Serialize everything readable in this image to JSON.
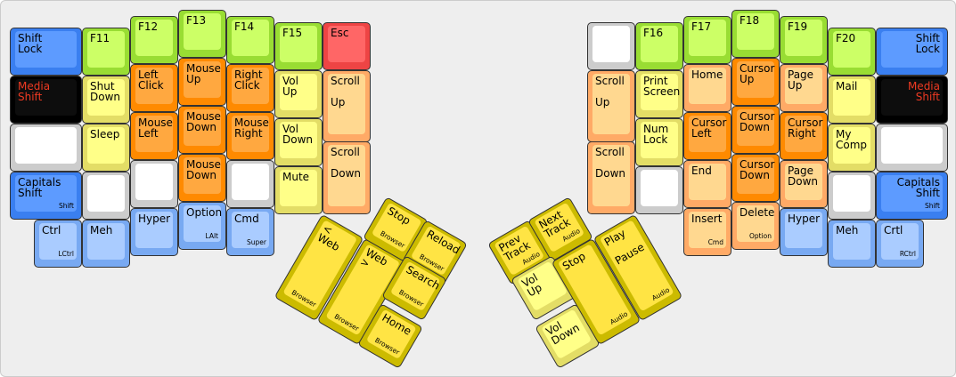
{
  "colors": {
    "blue": "#5d9bff",
    "green": "#ccff66",
    "light_yellow": "#ffff88",
    "orange": "#ffa840",
    "light_orange": "#ffd890",
    "light_blue": "#aaccff",
    "gray": "#ffffff",
    "black": "#0d0d0d",
    "red": "#ff6666",
    "thumb_yellow": "#ffe444",
    "media_text": "#ee3a22"
  },
  "keys": [
    {
      "label": "Shift\nLock",
      "sub": "",
      "color": "blue"
    },
    {
      "label": "Media\nShift",
      "sub": "",
      "color": "black"
    },
    {
      "label": "",
      "sub": "",
      "color": "gray"
    },
    {
      "label": "Capitals\nShift",
      "sub": "Shift",
      "color": "blue"
    },
    {
      "label": "Ctrl",
      "sub": "LCtrl",
      "color": "lblue"
    },
    {
      "label": "F11",
      "sub": "",
      "color": "green"
    },
    {
      "label": "Shut\nDown",
      "sub": "",
      "color": "ylight"
    },
    {
      "label": "Sleep",
      "sub": "",
      "color": "ylight"
    },
    {
      "label": "",
      "sub": "",
      "color": "gray"
    },
    {
      "label": "Meh",
      "sub": "",
      "color": "lblue"
    },
    {
      "label": "F12",
      "sub": "",
      "color": "green"
    },
    {
      "label": "Left\nClick",
      "sub": "",
      "color": "orange"
    },
    {
      "label": "Mouse\nLeft",
      "sub": "",
      "color": "orange"
    },
    {
      "label": "",
      "sub": "",
      "color": "gray"
    },
    {
      "label": "Hyper",
      "sub": "",
      "color": "lblue"
    },
    {
      "label": "F13",
      "sub": "",
      "color": "green"
    },
    {
      "label": "Mouse\nUp",
      "sub": "",
      "color": "orange"
    },
    {
      "label": "Mouse\nDown",
      "sub": "",
      "color": "orange"
    },
    {
      "label": "Mouse\nDown",
      "sub": "",
      "color": "orange"
    },
    {
      "label": "Option",
      "sub": "LAlt",
      "color": "lblue"
    },
    {
      "label": "F14",
      "sub": "",
      "color": "green"
    },
    {
      "label": "Right\nClick",
      "sub": "",
      "color": "orange"
    },
    {
      "label": "Mouse\nRight",
      "sub": "",
      "color": "orange"
    },
    {
      "label": "",
      "sub": "",
      "color": "gray"
    },
    {
      "label": "Cmd",
      "sub": "Super",
      "color": "lblue"
    },
    {
      "label": "F15",
      "sub": "",
      "color": "green"
    },
    {
      "label": "Vol\nUp",
      "sub": "",
      "color": "ylight"
    },
    {
      "label": "Vol\nDown",
      "sub": "",
      "color": "ylight"
    },
    {
      "label": "Mute",
      "sub": "",
      "color": "ylight"
    },
    {
      "label": "Esc",
      "sub": "",
      "color": "red"
    },
    {
      "label": "Scroll\n\nUp",
      "sub": "",
      "color": "lorange"
    },
    {
      "label": "Scroll\n\nDown",
      "sub": "",
      "color": "lorange"
    },
    {
      "label": "< Web",
      "sub": "Browser",
      "color": "thumb"
    },
    {
      "label": "Web >",
      "sub": "Browser",
      "color": "thumb"
    },
    {
      "label": "Stop",
      "sub": "Browser",
      "color": "thumb"
    },
    {
      "label": "Reload",
      "sub": "Browser",
      "color": "thumb"
    },
    {
      "label": "Search",
      "sub": "Browser",
      "color": "thumb"
    },
    {
      "label": "Home",
      "sub": "Browser",
      "color": "thumb"
    },
    {
      "label": "Prev\nTrack",
      "sub": "Audio",
      "color": "thumb"
    },
    {
      "label": "Next\nTrack",
      "sub": "Audio",
      "color": "thumb"
    },
    {
      "label": "Vol\nUp",
      "sub": "",
      "color": "ylight"
    },
    {
      "label": "Vol\nDown",
      "sub": "",
      "color": "ylight"
    },
    {
      "label": "Stop",
      "sub": "Audio",
      "color": "thumb"
    },
    {
      "label": "Play\n\nPause",
      "sub": "Audio",
      "color": "thumb"
    },
    {
      "label": "",
      "sub": "",
      "color": "gray"
    },
    {
      "label": "Scroll\n\nUp",
      "sub": "",
      "color": "lorange"
    },
    {
      "label": "Scroll\n\nDown",
      "sub": "",
      "color": "lorange"
    },
    {
      "label": "F16",
      "sub": "",
      "color": "green"
    },
    {
      "label": "Print\nScreen",
      "sub": "",
      "color": "ylight"
    },
    {
      "label": "Num\nLock",
      "sub": "",
      "color": "ylight"
    },
    {
      "label": "",
      "sub": "",
      "color": "gray"
    },
    {
      "label": "F17",
      "sub": "",
      "color": "green"
    },
    {
      "label": "Home",
      "sub": "",
      "color": "lorange"
    },
    {
      "label": "Cursor\nLeft",
      "sub": "",
      "color": "orange"
    },
    {
      "label": "End",
      "sub": "",
      "color": "lorange"
    },
    {
      "label": "Insert",
      "sub": "Cmd",
      "color": "lorange"
    },
    {
      "label": "F18",
      "sub": "",
      "color": "green"
    },
    {
      "label": "Cursor\nUp",
      "sub": "",
      "color": "orange"
    },
    {
      "label": "Cursor\nDown",
      "sub": "",
      "color": "orange"
    },
    {
      "label": "Cursor\nDown",
      "sub": "",
      "color": "orange"
    },
    {
      "label": "Delete",
      "sub": "Option",
      "color": "lorange"
    },
    {
      "label": "F19",
      "sub": "",
      "color": "green"
    },
    {
      "label": "Page\nUp",
      "sub": "",
      "color": "lorange"
    },
    {
      "label": "Cursor\nRight",
      "sub": "",
      "color": "orange"
    },
    {
      "label": "Page\nDown",
      "sub": "",
      "color": "lorange"
    },
    {
      "label": "Hyper",
      "sub": "",
      "color": "lblue"
    },
    {
      "label": "F20",
      "sub": "",
      "color": "green"
    },
    {
      "label": "Mail",
      "sub": "",
      "color": "ylight"
    },
    {
      "label": "My\nComp",
      "sub": "",
      "color": "ylight"
    },
    {
      "label": "",
      "sub": "",
      "color": "gray"
    },
    {
      "label": "Meh",
      "sub": "",
      "color": "lblue"
    },
    {
      "label": "Shift\nLock",
      "sub": "",
      "color": "blue"
    },
    {
      "label": "Media\nShift",
      "sub": "",
      "color": "black"
    },
    {
      "label": "",
      "sub": "",
      "color": "gray"
    },
    {
      "label": "Capitals\nShift",
      "sub": "Shift",
      "color": "blue"
    },
    {
      "label": "Crtl",
      "sub": "RCtrl",
      "color": "lblue"
    }
  ]
}
